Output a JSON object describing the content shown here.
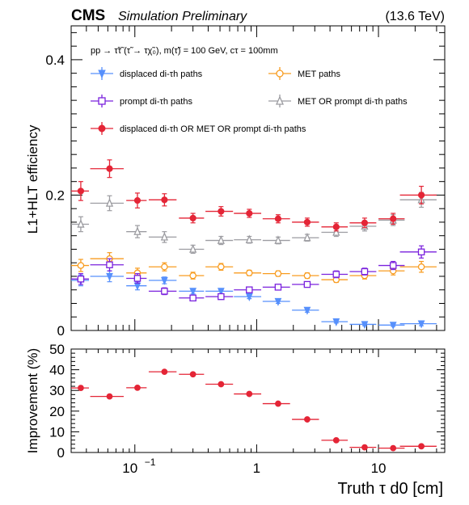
{
  "header": {
    "experiment": "CMS",
    "label": "Simulation Preliminary",
    "energy": "(13.6 TeV)"
  },
  "colors": {
    "displaced": "#5790fc",
    "met": "#f89c20",
    "prompt": "#7a21dd",
    "met_or_prompt": "#9c9ca1",
    "combined": "#e42536"
  },
  "chart_data": [
    {
      "type": "scatter",
      "panel": "top",
      "annotation": "pp → τ̃τ̃ (τ̃ → τχ̃₀), m(τ̃) = 100 GeV, cτ = 100mm",
      "xlabel": "",
      "ylabel": "L1+HLT efficiency",
      "xscale": "log",
      "xlim": [
        0.03,
        35
      ],
      "ylim": [
        0,
        0.45
      ],
      "y_ticks": [
        0,
        0.2,
        0.4
      ],
      "y_tick_labels": [
        "0",
        "0.2",
        "0.4"
      ],
      "legend": "top",
      "series": [
        {
          "name": "displaced di-τh paths",
          "marker": "triangle-down-filled",
          "color_key": "displaced",
          "x": [
            0.036,
            0.062,
            0.105,
            0.175,
            0.3,
            0.51,
            0.87,
            1.5,
            2.6,
            4.5,
            7.7,
            13.2,
            22.5
          ],
          "xerr": [
            0.006,
            0.019,
            0.02,
            0.045,
            0.07,
            0.13,
            0.22,
            0.38,
            0.65,
            1.1,
            1.9,
            3.2,
            7.5
          ],
          "y": [
            0.074,
            0.08,
            0.066,
            0.074,
            0.058,
            0.058,
            0.05,
            0.043,
            0.03,
            0.013,
            0.009,
            0.008,
            0.01
          ],
          "yerr": [
            0.008,
            0.008,
            0.006,
            0.005,
            0.004,
            0.004,
            0.003,
            0.003,
            0.003,
            0.002,
            0.002,
            0.002,
            0.003
          ]
        },
        {
          "name": "MET paths",
          "marker": "circle-open",
          "color_key": "met",
          "x": [
            0.036,
            0.062,
            0.105,
            0.175,
            0.3,
            0.51,
            0.87,
            1.5,
            2.6,
            4.5,
            7.7,
            13.2,
            22.5
          ],
          "xerr": [
            0.006,
            0.019,
            0.02,
            0.045,
            0.07,
            0.13,
            0.22,
            0.38,
            0.65,
            1.1,
            1.9,
            3.2,
            7.5
          ],
          "y": [
            0.096,
            0.106,
            0.085,
            0.094,
            0.081,
            0.094,
            0.085,
            0.084,
            0.081,
            0.075,
            0.081,
            0.088,
            0.094
          ],
          "yerr": [
            0.009,
            0.009,
            0.007,
            0.006,
            0.005,
            0.005,
            0.004,
            0.004,
            0.004,
            0.004,
            0.005,
            0.006,
            0.008
          ]
        },
        {
          "name": "prompt di-τh paths",
          "marker": "square-open",
          "color_key": "prompt",
          "x": [
            0.036,
            0.062,
            0.105,
            0.175,
            0.3,
            0.51,
            0.87,
            1.5,
            2.6,
            4.5,
            7.7,
            13.2,
            22.5
          ],
          "xerr": [
            0.006,
            0.019,
            0.02,
            0.045,
            0.07,
            0.13,
            0.22,
            0.38,
            0.65,
            1.1,
            1.9,
            3.2,
            7.5
          ],
          "y": [
            0.076,
            0.097,
            0.077,
            0.058,
            0.048,
            0.05,
            0.06,
            0.064,
            0.068,
            0.083,
            0.087,
            0.096,
            0.116
          ],
          "yerr": [
            0.008,
            0.009,
            0.007,
            0.005,
            0.004,
            0.004,
            0.004,
            0.004,
            0.004,
            0.005,
            0.005,
            0.006,
            0.009
          ]
        },
        {
          "name": "MET OR prompt di-τh paths",
          "marker": "triangle-up-open",
          "color_key": "met_or_prompt",
          "x": [
            0.036,
            0.062,
            0.105,
            0.175,
            0.3,
            0.51,
            0.87,
            1.5,
            2.6,
            4.5,
            7.7,
            13.2,
            22.5
          ],
          "xerr": [
            0.006,
            0.019,
            0.02,
            0.045,
            0.07,
            0.13,
            0.22,
            0.38,
            0.65,
            1.1,
            1.9,
            3.2,
            7.5
          ],
          "y": [
            0.157,
            0.188,
            0.146,
            0.138,
            0.12,
            0.133,
            0.134,
            0.133,
            0.137,
            0.145,
            0.154,
            0.163,
            0.193
          ],
          "yerr": [
            0.011,
            0.011,
            0.009,
            0.008,
            0.006,
            0.006,
            0.005,
            0.005,
            0.005,
            0.006,
            0.007,
            0.008,
            0.011
          ]
        },
        {
          "name": "displaced di-τh OR MET OR prompt di-τh paths",
          "marker": "circle-filled",
          "color_key": "combined",
          "x": [
            0.036,
            0.062,
            0.105,
            0.175,
            0.3,
            0.51,
            0.87,
            1.5,
            2.6,
            4.5,
            7.7,
            13.2,
            22.5
          ],
          "xerr": [
            0.006,
            0.019,
            0.02,
            0.045,
            0.07,
            0.13,
            0.22,
            0.38,
            0.65,
            1.1,
            1.9,
            3.2,
            7.5
          ],
          "y": [
            0.206,
            0.239,
            0.192,
            0.193,
            0.166,
            0.176,
            0.173,
            0.165,
            0.16,
            0.153,
            0.159,
            0.165,
            0.2
          ],
          "yerr": [
            0.014,
            0.013,
            0.011,
            0.009,
            0.007,
            0.007,
            0.006,
            0.006,
            0.006,
            0.006,
            0.007,
            0.008,
            0.013
          ]
        }
      ]
    },
    {
      "type": "scatter",
      "panel": "bottom",
      "xlabel": "Truth τ d0 [cm]",
      "ylabel": "Improvement (%)",
      "xscale": "log",
      "xlim": [
        0.03,
        35
      ],
      "ylim": [
        0,
        50
      ],
      "y_ticks": [
        0,
        10,
        20,
        30,
        40,
        50
      ],
      "y_tick_labels": [
        "0",
        "10",
        "20",
        "30",
        "40",
        "50"
      ],
      "x_tick_labels": [
        "10",
        "1",
        "10"
      ],
      "x_tick_exponent": "−1",
      "series": [
        {
          "marker": "circle-filled",
          "color_key": "combined",
          "x": [
            0.036,
            0.062,
            0.105,
            0.175,
            0.3,
            0.51,
            0.87,
            1.5,
            2.6,
            4.5,
            7.7,
            13.2,
            22.5
          ],
          "xerr": [
            0.006,
            0.019,
            0.02,
            0.045,
            0.07,
            0.13,
            0.22,
            0.38,
            0.65,
            1.1,
            1.9,
            3.2,
            7.5
          ],
          "y": [
            31.2,
            27.1,
            31.3,
            39.0,
            37.8,
            33.0,
            28.3,
            23.6,
            16.0,
            5.9,
            2.5,
            2.1,
            3.0
          ],
          "yerr": [
            0.8,
            0.8,
            0.7,
            0.6,
            0.6,
            0.5,
            0.5,
            0.5,
            0.4,
            0.3,
            0.3,
            0.3,
            0.4
          ]
        }
      ]
    }
  ]
}
